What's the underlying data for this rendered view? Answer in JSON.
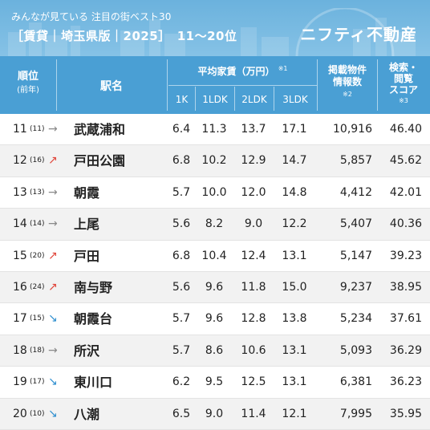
{
  "header": {
    "subtitle": "みんなが見ている 注目の街ベスト30",
    "title": "［賃貸｜埼玉県版｜2025］　11〜20位",
    "brand": "ニフティ不動産"
  },
  "columns": {
    "rank": "順位",
    "rank_prev": "(前年)",
    "station": "駅名",
    "rent": "平均家賃（万円）",
    "rent_note": "※1",
    "k1": "1K",
    "ldk1": "1LDK",
    "ldk2": "2LDK",
    "ldk3": "3LDK",
    "listings_line1": "掲載物件",
    "listings_line2": "情報数",
    "listings_note": "※2",
    "score_line1": "検索・",
    "score_line2": "閲覧",
    "score_line3": "スコア",
    "score_note": "※3"
  },
  "colors": {
    "up": "#e0453a",
    "down": "#2f8fcf",
    "flat": "#888888"
  },
  "rows": [
    {
      "rank": "11",
      "prev": "(11)",
      "trend": "flat",
      "arrow": "→",
      "station": "武蔵浦和",
      "k1": "6.4",
      "ldk1": "11.3",
      "ldk2": "13.7",
      "ldk3": "17.1",
      "listings": "10,916",
      "score": "46.40"
    },
    {
      "rank": "12",
      "prev": "(16)",
      "trend": "up",
      "arrow": "↗",
      "station": "戸田公園",
      "k1": "6.8",
      "ldk1": "10.2",
      "ldk2": "12.9",
      "ldk3": "14.7",
      "listings": "5,857",
      "score": "45.62"
    },
    {
      "rank": "13",
      "prev": "(13)",
      "trend": "flat",
      "arrow": "→",
      "station": "朝霞",
      "k1": "5.7",
      "ldk1": "10.0",
      "ldk2": "12.0",
      "ldk3": "14.8",
      "listings": "4,412",
      "score": "42.01"
    },
    {
      "rank": "14",
      "prev": "(14)",
      "trend": "flat",
      "arrow": "→",
      "station": "上尾",
      "k1": "5.6",
      "ldk1": "8.2",
      "ldk2": "9.0",
      "ldk3": "12.2",
      "listings": "5,407",
      "score": "40.36"
    },
    {
      "rank": "15",
      "prev": "(20)",
      "trend": "up",
      "arrow": "↗",
      "station": "戸田",
      "k1": "6.8",
      "ldk1": "10.4",
      "ldk2": "12.4",
      "ldk3": "13.1",
      "listings": "5,147",
      "score": "39.23"
    },
    {
      "rank": "16",
      "prev": "(24)",
      "trend": "up",
      "arrow": "↗",
      "station": "南与野",
      "k1": "5.6",
      "ldk1": "9.6",
      "ldk2": "11.8",
      "ldk3": "15.0",
      "listings": "9,237",
      "score": "38.95"
    },
    {
      "rank": "17",
      "prev": "(15)",
      "trend": "down",
      "arrow": "↘",
      "station": "朝霞台",
      "k1": "5.7",
      "ldk1": "9.6",
      "ldk2": "12.8",
      "ldk3": "13.8",
      "listings": "5,234",
      "score": "37.61"
    },
    {
      "rank": "18",
      "prev": "(18)",
      "trend": "flat",
      "arrow": "→",
      "station": "所沢",
      "k1": "5.7",
      "ldk1": "8.6",
      "ldk2": "10.6",
      "ldk3": "13.1",
      "listings": "5,093",
      "score": "36.29"
    },
    {
      "rank": "19",
      "prev": "(17)",
      "trend": "down",
      "arrow": "↘",
      "station": "東川口",
      "k1": "6.2",
      "ldk1": "9.5",
      "ldk2": "12.5",
      "ldk3": "13.1",
      "listings": "6,381",
      "score": "36.23"
    },
    {
      "rank": "20",
      "prev": "(10)",
      "trend": "down",
      "arrow": "↘",
      "station": "八潮",
      "k1": "6.5",
      "ldk1": "9.0",
      "ldk2": "11.4",
      "ldk3": "12.1",
      "listings": "7,995",
      "score": "35.95"
    }
  ]
}
